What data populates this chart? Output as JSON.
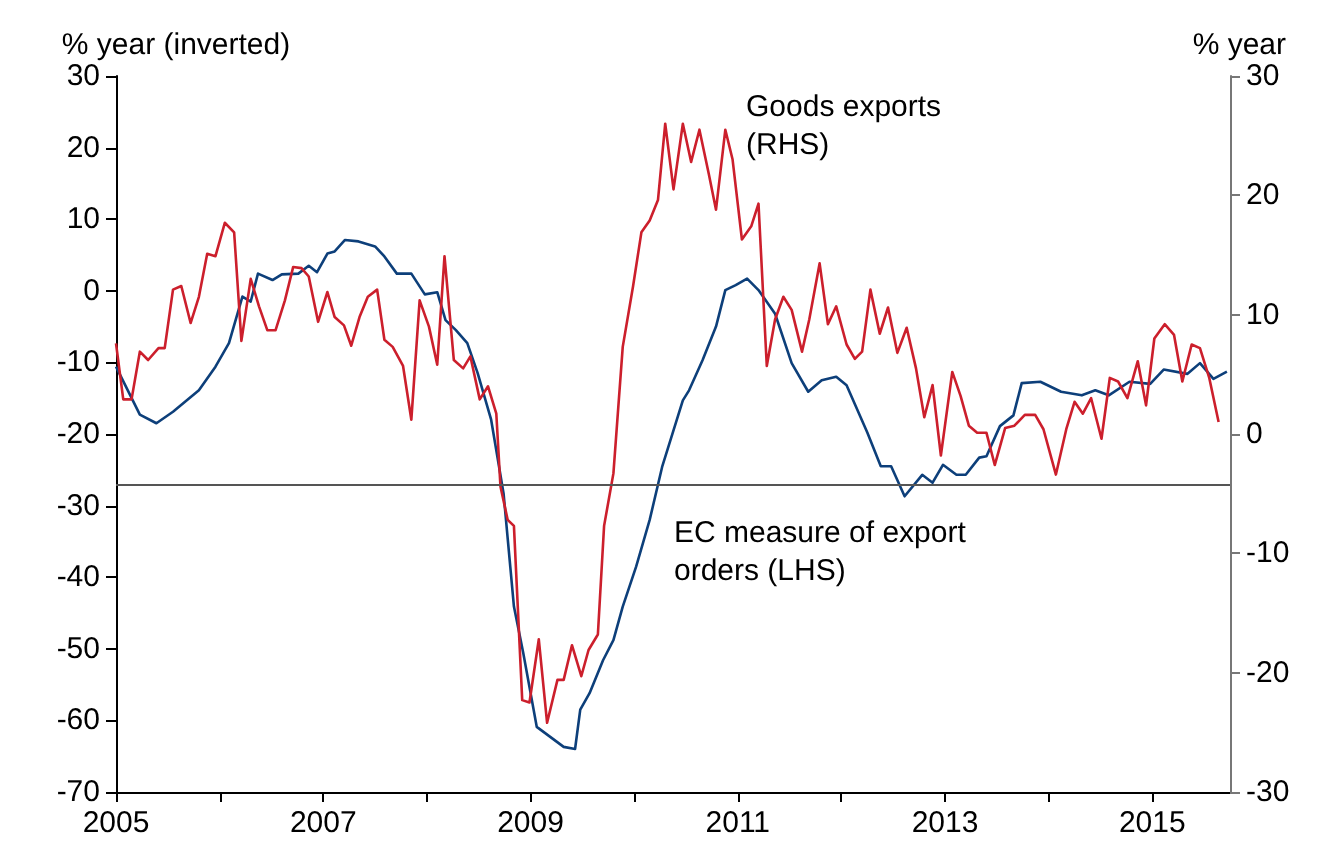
{
  "chart_data": {
    "type": "line",
    "ylabel": "% year (inverted)",
    "y2label": "% year",
    "xlim": [
      2005,
      2015.75
    ],
    "xticks": [
      2005,
      {
        "value": 2006,
        "label": null
      },
      2007,
      {
        "value": 2008,
        "label": null
      },
      2009,
      {
        "value": 2010,
        "label": null
      },
      2011,
      {
        "value": 2012,
        "label": null
      },
      2013,
      {
        "value": 2014,
        "label": null
      },
      2015
    ],
    "ylim": [
      -70,
      30
    ],
    "yticks": [
      -70,
      -60,
      -50,
      -40,
      -30,
      -20,
      -10,
      0,
      10,
      20,
      30
    ],
    "y2lim": [
      -30,
      30
    ],
    "y2ticks": [
      -30,
      -20,
      -10,
      0,
      10,
      20,
      30
    ],
    "grid": false,
    "legend": false,
    "marker": "none",
    "line_style": "solid",
    "ref_lines": [
      {
        "axis": "y",
        "value": -27,
        "color": "#555555"
      }
    ],
    "series": [
      {
        "name": "EC measure of export orders (LHS)",
        "color": "#0d3f7a",
        "x": [
          2005.0,
          2005.23,
          2005.39,
          2005.55,
          2005.8,
          2005.96,
          2006.09,
          2006.22,
          2006.3,
          2006.37,
          2006.51,
          2006.6,
          2006.76,
          2006.86,
          2006.94,
          2007.04,
          2007.11,
          2007.21,
          2007.34,
          2007.5,
          2007.59,
          2007.71,
          2007.85,
          2007.98,
          2008.1,
          2008.18,
          2008.28,
          2008.39,
          2008.49,
          2008.62,
          2008.74,
          2008.84,
          2008.93,
          2009.06,
          2009.19,
          2009.32,
          2009.43,
          2009.48,
          2009.57,
          2009.7,
          2009.8,
          2009.89,
          2010.02,
          2010.15,
          2010.27,
          2010.47,
          2010.53,
          2010.66,
          2010.79,
          2010.88,
          2010.98,
          2011.09,
          2011.2,
          2011.36,
          2011.52,
          2011.68,
          2011.81,
          2011.95,
          2012.05,
          2012.25,
          2012.38,
          2012.48,
          2012.61,
          2012.78,
          2012.88,
          2012.98,
          2013.11,
          2013.2,
          2013.33,
          2013.4,
          2013.53,
          2013.66,
          2013.74,
          2013.92,
          2014.12,
          2014.32,
          2014.45,
          2014.58,
          2014.78,
          2014.98,
          2015.11,
          2015.34,
          2015.46,
          2015.59,
          2015.72
        ],
        "values": [
          -10.6,
          -17.3,
          -18.5,
          -16.9,
          -13.9,
          -10.6,
          -7.3,
          -0.8,
          -1.5,
          2.4,
          1.5,
          2.3,
          2.4,
          3.5,
          2.6,
          5.2,
          5.5,
          7.1,
          6.9,
          6.2,
          4.8,
          2.4,
          2.4,
          -0.5,
          -0.2,
          -4.1,
          -5.5,
          -7.3,
          -11.5,
          -18.0,
          -28.3,
          -44.1,
          -50.6,
          -60.9,
          -62.3,
          -63.7,
          -64,
          -58.5,
          -56.2,
          -51.6,
          -48.8,
          -44.1,
          -38.5,
          -32.0,
          -24.6,
          -15.3,
          -13.9,
          -9.7,
          -5.0,
          0.1,
          0.8,
          1.7,
          0.1,
          -3.2,
          -10.1,
          -14.1,
          -12.5,
          -12.0,
          -13.2,
          -19.8,
          -24.5,
          -24.5,
          -28.7,
          -25.7,
          -26.8,
          -24.3,
          -25.7,
          -25.7,
          -23.3,
          -23.1,
          -18.9,
          -17.4,
          -12.9,
          -12.7,
          -14.1,
          -14.6,
          -13.9,
          -14.6,
          -12.7,
          -13.0,
          -11.0,
          -11.6,
          -10.1,
          -12.3,
          -11.3
        ]
      },
      {
        "name": "Goods exports (RHS)",
        "color": "#cc1f2c",
        "axis": "y2",
        "x": [
          2005.0,
          2005.07,
          2005.15,
          2005.23,
          2005.31,
          2005.41,
          2005.47,
          2005.55,
          2005.63,
          2005.72,
          2005.8,
          2005.88,
          2005.96,
          2006.05,
          2006.14,
          2006.21,
          2006.3,
          2006.38,
          2006.46,
          2006.54,
          2006.63,
          2006.71,
          2006.79,
          2006.86,
          2006.95,
          2007.04,
          2007.11,
          2007.2,
          2007.27,
          2007.35,
          2007.43,
          2007.52,
          2007.59,
          2007.67,
          2007.77,
          2007.85,
          2007.93,
          2008.02,
          2008.1,
          2008.17,
          2008.26,
          2008.35,
          2008.42,
          2008.51,
          2008.59,
          2008.67,
          2008.71,
          2008.78,
          2008.84,
          2008.92,
          2008.99,
          2009.08,
          2009.16,
          2009.26,
          2009.32,
          2009.4,
          2009.49,
          2009.56,
          2009.65,
          2009.71,
          2009.8,
          2009.89,
          2009.99,
          2010.07,
          2010.15,
          2010.23,
          2010.3,
          2010.38,
          2010.47,
          2010.55,
          2010.63,
          2010.72,
          2010.79,
          2010.88,
          2010.95,
          2011.04,
          2011.13,
          2011.2,
          2011.28,
          2011.36,
          2011.44,
          2011.52,
          2011.62,
          2011.69,
          2011.79,
          2011.87,
          2011.95,
          2012.05,
          2012.13,
          2012.2,
          2012.28,
          2012.37,
          2012.45,
          2012.54,
          2012.63,
          2012.72,
          2012.8,
          2012.88,
          2012.96,
          2013.07,
          2013.15,
          2013.23,
          2013.31,
          2013.4,
          2013.48,
          2013.58,
          2013.67,
          2013.77,
          2013.87,
          2013.95,
          2014.07,
          2014.17,
          2014.25,
          2014.33,
          2014.41,
          2014.51,
          2014.59,
          2014.67,
          2014.76,
          2014.86,
          2014.94,
          2015.02,
          2015.12,
          2015.21,
          2015.29,
          2015.38,
          2015.46,
          2015.55,
          2015.64
        ],
        "values": [
          7.6,
          2.9,
          2.9,
          6.9,
          6.2,
          7.2,
          7.2,
          12.1,
          12.4,
          9.3,
          11.5,
          15.1,
          14.9,
          17.7,
          16.9,
          7.8,
          13.0,
          10.7,
          8.7,
          8.7,
          11.2,
          14.0,
          13.9,
          13.2,
          9.4,
          11.9,
          9.8,
          9.1,
          7.4,
          9.8,
          11.5,
          12.1,
          7.9,
          7.3,
          5.7,
          1.2,
          11.2,
          9.0,
          5.8,
          14.9,
          6.2,
          5.5,
          6.5,
          2.9,
          4.0,
          1.7,
          -4.4,
          -7.2,
          -7.7,
          -22.3,
          -22.5,
          -17.2,
          -24.2,
          -20.6,
          -20.6,
          -17.7,
          -20.3,
          -18.1,
          -16.8,
          -7.7,
          -3.3,
          7.3,
          12.4,
          16.9,
          17.9,
          19.6,
          26.0,
          20.5,
          26.0,
          22.8,
          25.5,
          21.8,
          18.8,
          25.5,
          23.0,
          16.3,
          17.4,
          19.3,
          5.7,
          9.6,
          11.5,
          10.4,
          6.9,
          9.6,
          14.3,
          9.2,
          10.7,
          7.5,
          6.3,
          6.9,
          12.1,
          8.4,
          10.6,
          6.8,
          8.9,
          5.5,
          1.4,
          4.1,
          -1.8,
          5.2,
          3.2,
          0.7,
          0.1,
          0.1,
          -2.6,
          0.5,
          0.7,
          1.6,
          1.6,
          0.4,
          -3.4,
          0.4,
          2.7,
          1.7,
          3.0,
          -0.4,
          4.7,
          4.4,
          3.0,
          6.1,
          2.4,
          8.0,
          9.2,
          8.3,
          4.4,
          7.5,
          7.2,
          4.7,
          1.0
        ]
      }
    ]
  }
}
